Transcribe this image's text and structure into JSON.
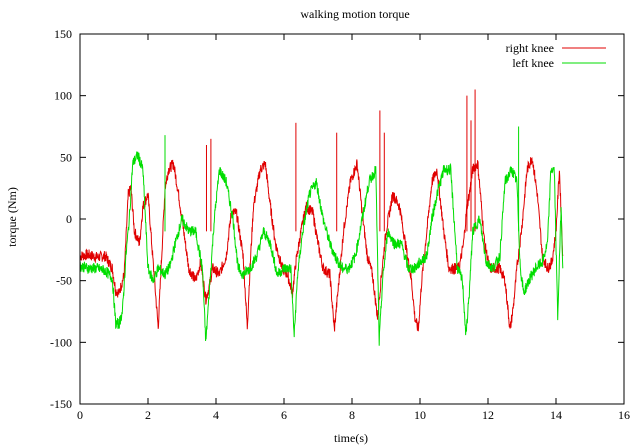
{
  "chart_data": {
    "type": "line",
    "title": "walking motion torque",
    "xlabel": "time(s)",
    "ylabel": "torque (Nm)",
    "xlim": [
      0,
      16
    ],
    "ylim": [
      -150,
      150
    ],
    "xticks": [
      0,
      2,
      4,
      6,
      8,
      10,
      12,
      14,
      16
    ],
    "yticks": [
      -150,
      -100,
      -50,
      0,
      50,
      100,
      150
    ],
    "xtick_labels": [
      "0",
      "2",
      "4",
      "6",
      "8",
      "10",
      "12",
      "14",
      "16"
    ],
    "ytick_labels": [
      "-150",
      "-100",
      "-50",
      "0",
      "50",
      "100",
      "150"
    ],
    "grid": false,
    "legend_position": "top-right",
    "series": [
      {
        "name": "right knee",
        "color": "#e00000",
        "x": [
          0.0,
          0.25,
          0.5,
          0.75,
          0.95,
          1.05,
          1.15,
          1.3,
          1.42,
          1.5,
          1.6,
          1.75,
          1.85,
          2.0,
          2.15,
          2.3,
          2.42,
          2.5,
          2.6,
          2.75,
          2.9,
          3.05,
          3.2,
          3.4,
          3.55,
          3.7,
          3.8,
          3.9,
          4.1,
          4.3,
          4.45,
          4.6,
          4.8,
          4.92,
          5.0,
          5.1,
          5.3,
          5.45,
          5.6,
          5.75,
          5.95,
          6.1,
          6.25,
          6.35,
          6.5,
          6.65,
          6.85,
          7.0,
          7.15,
          7.35,
          7.48,
          7.6,
          7.75,
          7.95,
          8.15,
          8.3,
          8.45,
          8.6,
          8.75,
          8.85,
          9.0,
          9.2,
          9.4,
          9.6,
          9.75,
          9.85,
          9.95,
          10.05,
          10.2,
          10.35,
          10.5,
          10.7,
          10.85,
          11.0,
          11.15,
          11.28,
          11.38,
          11.45,
          11.55,
          11.7,
          11.9,
          12.05,
          12.2,
          12.35,
          12.5,
          12.65,
          12.75,
          12.85,
          13.0,
          13.15,
          13.3,
          13.45,
          13.6,
          13.75,
          13.88,
          14.0,
          14.1,
          14.2
        ],
        "y": [
          -30,
          -29,
          -31,
          -30,
          -40,
          -58,
          -60,
          -45,
          20,
          25,
          -10,
          -20,
          10,
          20,
          -35,
          -88,
          -20,
          25,
          40,
          45,
          20,
          -10,
          -40,
          -50,
          -35,
          -65,
          -55,
          -40,
          -45,
          -30,
          5,
          5,
          -30,
          -88,
          -40,
          10,
          40,
          45,
          10,
          -20,
          -40,
          -45,
          -60,
          -35,
          -10,
          10,
          5,
          -20,
          -40,
          -45,
          -90,
          -55,
          -10,
          30,
          45,
          5,
          -30,
          -45,
          -80,
          -50,
          -10,
          20,
          10,
          -25,
          -50,
          -80,
          -90,
          -50,
          -10,
          30,
          40,
          -10,
          -40,
          -40,
          -40,
          -20,
          10,
          20,
          40,
          45,
          -20,
          -40,
          -40,
          -40,
          -50,
          -90,
          -70,
          -40,
          -5,
          40,
          50,
          20,
          -30,
          -40,
          -35,
          -10,
          40,
          -30
        ],
        "peaks": [
          {
            "x": 3.72,
            "y": 60
          },
          {
            "x": 3.85,
            "y": 65
          },
          {
            "x": 6.35,
            "y": 78
          },
          {
            "x": 7.55,
            "y": 70
          },
          {
            "x": 8.82,
            "y": 88
          },
          {
            "x": 8.95,
            "y": 70
          },
          {
            "x": 11.38,
            "y": 100
          },
          {
            "x": 11.5,
            "y": 80
          },
          {
            "x": 11.62,
            "y": 105
          }
        ]
      },
      {
        "name": "left knee",
        "color": "#00dd00",
        "x": [
          0.0,
          0.25,
          0.5,
          0.75,
          0.95,
          1.05,
          1.15,
          1.25,
          1.35,
          1.45,
          1.55,
          1.7,
          1.85,
          2.0,
          2.15,
          2.3,
          2.5,
          2.65,
          2.8,
          3.0,
          3.2,
          3.4,
          3.6,
          3.7,
          3.8,
          3.95,
          4.1,
          4.3,
          4.5,
          4.65,
          4.8,
          5.0,
          5.2,
          5.4,
          5.6,
          5.8,
          6.0,
          6.2,
          6.3,
          6.4,
          6.55,
          6.75,
          6.95,
          7.15,
          7.35,
          7.5,
          7.7,
          7.9,
          8.1,
          8.3,
          8.5,
          8.7,
          8.8,
          8.9,
          9.05,
          9.25,
          9.45,
          9.65,
          9.85,
          10.0,
          10.2,
          10.35,
          10.5,
          10.7,
          10.9,
          11.1,
          11.25,
          11.35,
          11.45,
          11.55,
          11.75,
          11.95,
          12.15,
          12.35,
          12.5,
          12.7,
          12.85,
          12.95,
          13.05,
          13.2,
          13.4,
          13.6,
          13.75,
          13.85,
          13.95,
          14.05,
          14.15,
          14.2
        ],
        "y": [
          -38,
          -40,
          -40,
          -42,
          -48,
          -85,
          -85,
          -75,
          -30,
          0,
          45,
          52,
          40,
          -40,
          -50,
          -40,
          -45,
          -38,
          -20,
          0,
          -10,
          -10,
          -40,
          -100,
          -60,
          0,
          40,
          30,
          0,
          -40,
          -45,
          -40,
          -30,
          -10,
          -20,
          -45,
          -40,
          -40,
          -95,
          -45,
          -10,
          20,
          30,
          0,
          -20,
          -30,
          -40,
          -40,
          -30,
          0,
          30,
          40,
          -100,
          -50,
          -10,
          -20,
          -20,
          -40,
          -40,
          -35,
          -30,
          0,
          20,
          40,
          40,
          -40,
          -50,
          -95,
          -60,
          -10,
          0,
          -35,
          -40,
          -30,
          30,
          40,
          30,
          -40,
          -60,
          -50,
          -40,
          -35,
          -20,
          40,
          40,
          -80,
          10,
          -40
        ],
        "peaks": [
          {
            "x": 2.5,
            "y": 68
          },
          {
            "x": 12.9,
            "y": 75
          }
        ]
      }
    ]
  }
}
